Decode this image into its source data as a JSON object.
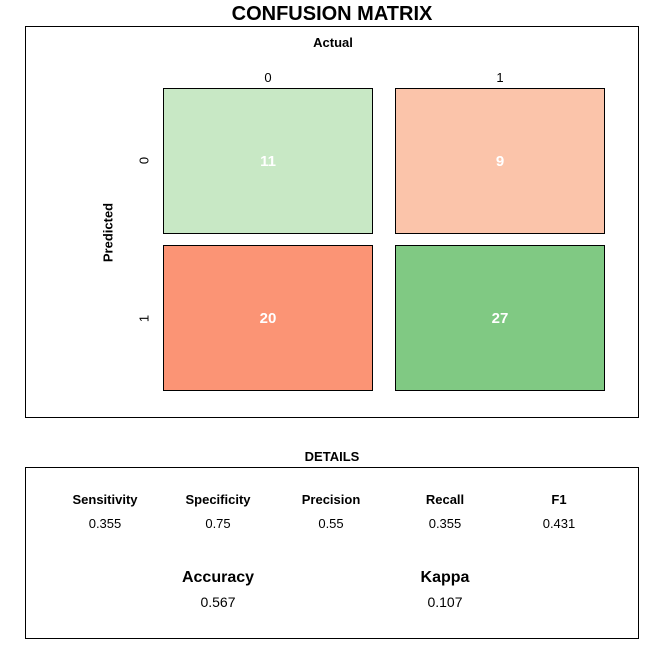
{
  "title": "CONFUSION MATRIX",
  "chart_data": {
    "type": "heatmap",
    "title": "CONFUSION MATRIX",
    "xlabel": "Actual",
    "ylabel": "Predicted",
    "x_categories": [
      "0",
      "1"
    ],
    "y_categories": [
      "0",
      "1"
    ],
    "cells": [
      {
        "predicted": "0",
        "actual": "0",
        "value": 11,
        "color": "#c8e8c5"
      },
      {
        "predicted": "0",
        "actual": "1",
        "value": 9,
        "color": "#fbc4aa"
      },
      {
        "predicted": "1",
        "actual": "0",
        "value": 20,
        "color": "#fb9475"
      },
      {
        "predicted": "1",
        "actual": "1",
        "value": 27,
        "color": "#80c983"
      }
    ]
  },
  "details": {
    "title": "DETAILS",
    "metrics": [
      {
        "label": "Sensitivity",
        "value": "0.355"
      },
      {
        "label": "Specificity",
        "value": "0.75"
      },
      {
        "label": "Precision",
        "value": "0.55"
      },
      {
        "label": "Recall",
        "value": "0.355"
      },
      {
        "label": "F1",
        "value": "0.431"
      }
    ],
    "summary": [
      {
        "label": "Accuracy",
        "value": "0.567"
      },
      {
        "label": "Kappa",
        "value": "0.107"
      }
    ]
  }
}
